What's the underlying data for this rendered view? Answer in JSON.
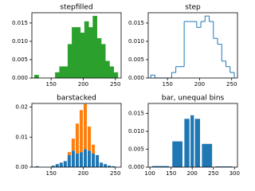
{
  "chart_data": [
    {
      "type": "histogram",
      "histtype": "stepfilled",
      "title": "stepfilled",
      "color": "#2ca02c",
      "bins": [
        124,
        130.5,
        137,
        143.5,
        150,
        156.5,
        163,
        169.5,
        176,
        182.5,
        189,
        195.5,
        202,
        208.5,
        215,
        221.5,
        228,
        234.5,
        241,
        247.5,
        254
      ],
      "values": [
        0.0008,
        0,
        0,
        0,
        0,
        0.0015,
        0.0031,
        0.0031,
        0.0092,
        0.0138,
        0.0138,
        0.0123,
        0.0154,
        0.0138,
        0.0169,
        0.0108,
        0.0092,
        0.0046,
        0.0031,
        0.0015
      ],
      "xlim": [
        120,
        259
      ],
      "ylim": [
        0,
        0.0178
      ],
      "xticks": [
        150,
        200,
        250
      ],
      "yticks": [
        {
          "value": 0,
          "label": "0.000"
        },
        {
          "value": 0.005,
          "label": "0.005"
        },
        {
          "value": 0.01,
          "label": "0.010"
        },
        {
          "value": 0.015,
          "label": "0.015"
        }
      ]
    },
    {
      "type": "histogram",
      "histtype": "step",
      "title": "step",
      "color": "#1f77b4",
      "bins": [
        124,
        130.5,
        137,
        143.5,
        150,
        156.5,
        163,
        169.5,
        176,
        182.5,
        189,
        195.5,
        202,
        208.5,
        215,
        221.5,
        228,
        234.5,
        241,
        247.5,
        254
      ],
      "values": [
        0.0008,
        0,
        0,
        0,
        0,
        0.0015,
        0.0031,
        0.0031,
        0.0154,
        0.0154,
        0.0154,
        0.0138,
        0.0154,
        0.0169,
        0.0154,
        0.0108,
        0.0092,
        0.0046,
        0.0031,
        0.0015
      ],
      "xlim": [
        120,
        259
      ],
      "ylim": [
        0,
        0.0178
      ],
      "xticks": [
        150,
        200,
        250
      ],
      "yticks": [
        {
          "value": 0,
          "label": "0.000"
        },
        {
          "value": 0.005,
          "label": "0.005"
        },
        {
          "value": 0.01,
          "label": "0.010"
        },
        {
          "value": 0.015,
          "label": "0.015"
        }
      ]
    },
    {
      "type": "histogram",
      "histtype": "barstacked",
      "title": "barstacked",
      "rwidth": 0.8,
      "bins": [
        125,
        131.25,
        137.5,
        143.75,
        150,
        156.25,
        162.5,
        168.75,
        175,
        181.25,
        187.5,
        193.75,
        200,
        206.25,
        212.5,
        218.75,
        225,
        231.25,
        237.5,
        243.75,
        250
      ],
      "series": [
        {
          "color": "#1f77b4",
          "values": [
            0.0003,
            0,
            0,
            0,
            0.0005,
            0.001,
            0.0015,
            0.002,
            0.004,
            0.0055,
            0.0045,
            0.005,
            0.006,
            0.0055,
            0.0045,
            0.004,
            0.0015,
            0.001,
            0.0005,
            0.0003
          ]
        },
        {
          "color": "#ff7f0e",
          "values": [
            0,
            0,
            0,
            0,
            0,
            0,
            0,
            0,
            0.001,
            0.004,
            0.01,
            0.014,
            0.015,
            0.008,
            0.003,
            0,
            0,
            0,
            0,
            0
          ]
        }
      ],
      "xlim": [
        120,
        259
      ],
      "ylim": [
        0,
        0.0212
      ],
      "xticks": [
        150,
        200,
        250
      ],
      "yticks": [
        {
          "value": 0,
          "label": "0.00"
        },
        {
          "value": 0.01,
          "label": "0.01"
        },
        {
          "value": 0.02,
          "label": "0.02"
        }
      ]
    },
    {
      "type": "histogram",
      "histtype": "bar",
      "title": "bar, unequal bins",
      "color": "#1f77b4",
      "rwidth": 0.8,
      "bins": [
        100,
        150,
        180,
        195,
        205,
        220,
        250,
        300
      ],
      "values": [
        0.0003,
        0.0072,
        0.0135,
        0.0145,
        0.0135,
        0.0065,
        0.0002
      ],
      "xlim": [
        96,
        307
      ],
      "ylim": [
        0,
        0.0178
      ],
      "xticks": [
        100,
        150,
        200,
        250,
        300
      ],
      "yticks": [
        {
          "value": 0,
          "label": "0.000"
        },
        {
          "value": 0.005,
          "label": "0.005"
        },
        {
          "value": 0.01,
          "label": "0.010"
        },
        {
          "value": 0.015,
          "label": "0.015"
        }
      ]
    }
  ]
}
